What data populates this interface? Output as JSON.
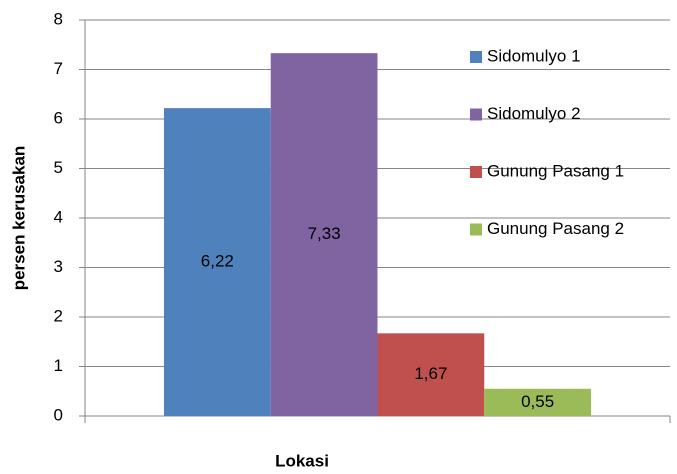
{
  "chart_data": {
    "type": "bar",
    "x_label": "Lokasi",
    "y_label": "persen kerusakan",
    "categories": [
      null
    ],
    "series": [
      {
        "name": "Sidomulyo 1",
        "color": "#4f81bd",
        "values": [
          6.22
        ],
        "value_labels": [
          "6,22"
        ]
      },
      {
        "name": "Sidomulyo 2",
        "color": "#8064a2",
        "values": [
          7.33
        ],
        "value_labels": [
          "7,33"
        ]
      },
      {
        "name": "Gunung Pasang 1",
        "color": "#c0504d",
        "values": [
          1.67
        ],
        "value_labels": [
          "1,67"
        ]
      },
      {
        "name": "Gunung Pasang 2",
        "color": "#9bbb59",
        "values": [
          0.55
        ],
        "value_labels": [
          "0,55"
        ]
      }
    ],
    "ylim": [
      0,
      8
    ],
    "yticks": [
      0,
      1,
      2,
      3,
      4,
      5,
      6,
      7,
      8
    ],
    "grid": true,
    "legend": "right"
  }
}
